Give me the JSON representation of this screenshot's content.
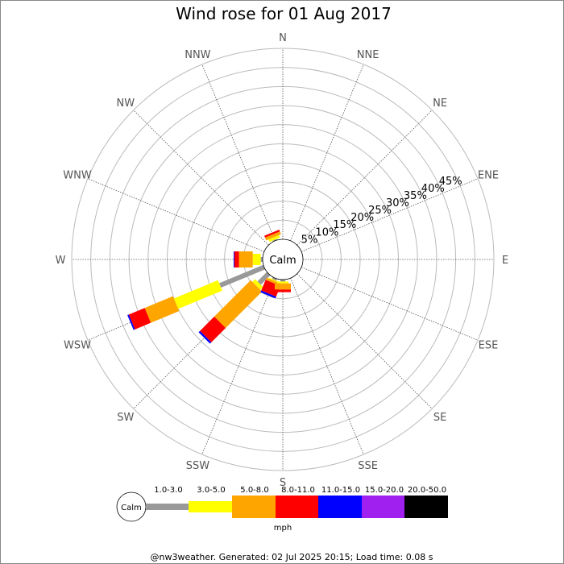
{
  "chart_data": {
    "type": "wind-rose",
    "title": "Wind rose for 01 Aug 2017",
    "center_label": "Calm",
    "directions": [
      "N",
      "NNE",
      "NE",
      "ENE",
      "E",
      "ESE",
      "SE",
      "SSE",
      "S",
      "SSW",
      "SW",
      "WSW",
      "W",
      "WNW",
      "NW",
      "NNW"
    ],
    "radial_ticks": [
      "5%",
      "10%",
      "15%",
      "20%",
      "25%",
      "30%",
      "35%",
      "40%",
      "45%"
    ],
    "radial_max": 50,
    "speed_bins": [
      {
        "label": "1.0-3.0",
        "color": "#999999"
      },
      {
        "label": "3.0-5.0",
        "color": "#ffff00"
      },
      {
        "label": "5.0-8.0",
        "color": "#ffa500"
      },
      {
        "label": "8.0-11.0",
        "color": "#ff0000"
      },
      {
        "label": "11.0-15.0",
        "color": "#0000ff"
      },
      {
        "label": "15.0-20.0",
        "color": "#a020f0"
      },
      {
        "label": "20.0-50.0",
        "color": "#000000"
      }
    ],
    "series": [
      {
        "direction": "NNW",
        "values": [
          0.3,
          0.7,
          0.8,
          0.5,
          0,
          0,
          0
        ]
      },
      {
        "direction": "W",
        "values": [
          0.5,
          2.1,
          3.6,
          1.2,
          0.2,
          0,
          0
        ]
      },
      {
        "direction": "WSW",
        "values": [
          12.5,
          12.5,
          8.0,
          4.5,
          0.4,
          0,
          0
        ]
      },
      {
        "direction": "SW",
        "values": [
          3.5,
          1.0,
          13.5,
          5.3,
          0.5,
          0,
          0
        ]
      },
      {
        "direction": "SSW",
        "values": [
          0.5,
          0.3,
          0.6,
          3.0,
          0.5,
          0,
          0
        ]
      },
      {
        "direction": "S",
        "values": [
          0.5,
          0.5,
          1.6,
          0.7,
          0,
          0,
          0
        ]
      }
    ],
    "legend_unit": "mph",
    "legend_calm_label": "Calm"
  },
  "footer": "@nw3weather.  Generated: 02 Jul 2025 20:15; Load time: 0.08 s"
}
